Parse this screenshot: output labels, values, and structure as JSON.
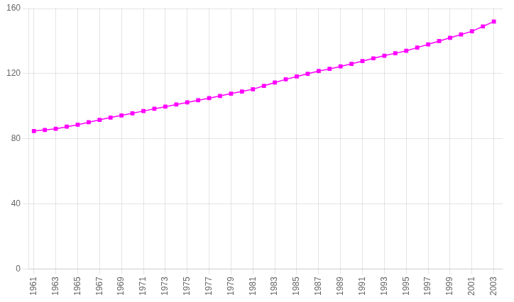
{
  "chart_data": {
    "type": "line",
    "x": [
      1961,
      1962,
      1963,
      1964,
      1965,
      1966,
      1967,
      1968,
      1969,
      1970,
      1971,
      1972,
      1973,
      1974,
      1975,
      1976,
      1977,
      1978,
      1979,
      1980,
      1981,
      1982,
      1983,
      1984,
      1985,
      1986,
      1987,
      1988,
      1989,
      1990,
      1991,
      1992,
      1993,
      1994,
      1995,
      1996,
      1997,
      1998,
      1999,
      2000,
      2001,
      2002,
      2003
    ],
    "values": [
      84.7,
      85.4,
      86.1,
      87.4,
      88.6,
      90.1,
      91.6,
      93.0,
      94.3,
      95.6,
      97.0,
      98.4,
      99.7,
      101.0,
      102.3,
      103.6,
      104.9,
      106.3,
      107.7,
      109.0,
      110.4,
      112.5,
      114.5,
      116.5,
      118.2,
      119.9,
      121.6,
      122.9,
      124.4,
      126.0,
      127.7,
      129.4,
      131.0,
      132.5,
      134.0,
      136.0,
      138.0,
      140.0,
      142.0,
      144.0,
      146.0,
      149.0,
      152.0
    ],
    "color": "#ff00ff",
    "marker": "square",
    "xlim": [
      1960.5,
      2003.8
    ],
    "ylim": [
      0,
      160
    ],
    "xticks": [
      1961,
      1963,
      1965,
      1967,
      1969,
      1971,
      1973,
      1975,
      1977,
      1979,
      1981,
      1983,
      1985,
      1987,
      1989,
      1991,
      1993,
      1995,
      1997,
      1999,
      2001,
      2003
    ],
    "yticks": [
      0,
      40,
      80,
      120,
      160
    ],
    "grid": true
  }
}
